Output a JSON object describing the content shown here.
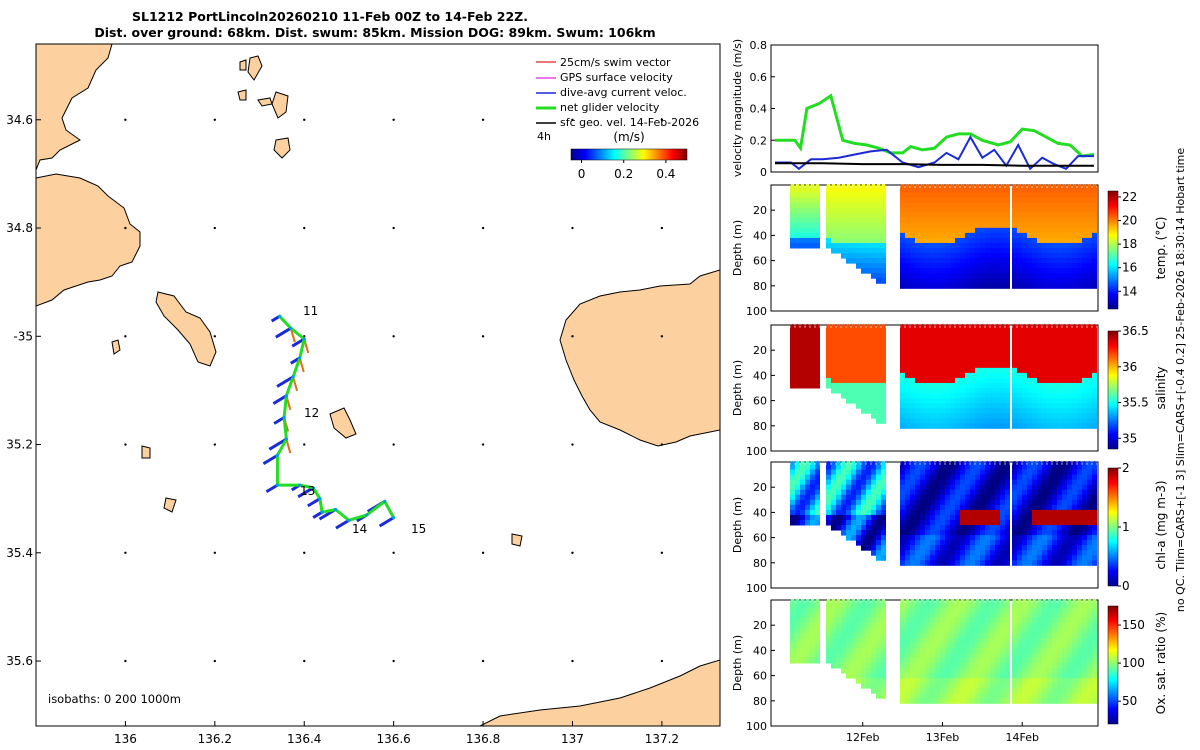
{
  "colors": {
    "land": "#fcd09f",
    "grid": "#000000",
    "swim": "#e02020",
    "gps": "#e020e0",
    "current": "#1a2ad8",
    "net": "#22dd22",
    "sfc": "#000000"
  },
  "chart_data": [
    {
      "type": "map",
      "title_line1": "SL1212 PortLincoln20260210 11-Feb 00Z to 14-Feb 22Z.",
      "title_line2": "Dist. over ground: 68km. Dist. swum: 85km. Mission DOG: 89km. Swum: 106km",
      "xlim": [
        135.8,
        137.33
      ],
      "ylim": [
        -35.72,
        -34.46
      ],
      "x_ticks": [
        136,
        136.2,
        136.4,
        136.6,
        136.8,
        137,
        137.2
      ],
      "x_tick_labels": [
        "136",
        "136.2",
        "136.4",
        "136.6",
        "136.8",
        "137",
        "137.2"
      ],
      "y_ticks": [
        -34.6,
        -34.8,
        -35,
        -35.2,
        -35.4,
        -35.6
      ],
      "y_tick_labels": [
        "34.6",
        "34.8",
        "-35",
        "35.2",
        "35.4",
        "35.6"
      ],
      "legend": [
        {
          "label": "25cm/s swim vector",
          "color": "#e02020"
        },
        {
          "label": "GPS surface velocity",
          "color": "#e020e0"
        },
        {
          "label": "dive-avg current veloc.",
          "color": "#1a2ad8"
        },
        {
          "label": "net glider velocity",
          "color": "#22dd22"
        },
        {
          "label": "sfc geo. vel. 14-Feb-2026",
          "color": "#000000"
        }
      ],
      "legend_extra": "4h",
      "colorbar_label": "(m/s)",
      "colorbar_ticks": [
        0,
        0.2,
        0.4
      ],
      "colorbar_range": [
        -0.05,
        0.5
      ],
      "isobaths_label": "isobaths: 0   200  1000m",
      "day_labels": [
        {
          "label": "11",
          "lon": 136.37,
          "lat": -34.97
        },
        {
          "label": "12",
          "lon": 136.37,
          "lat": -35.15
        },
        {
          "label": "13",
          "lon": 136.39,
          "lat": -35.28
        },
        {
          "label": "14",
          "lon": 136.5,
          "lat": -35.34
        },
        {
          "label": "15",
          "lon": 136.62,
          "lat": -35.34
        }
      ],
      "track": [
        [
          136.345,
          -34.963
        ],
        [
          136.37,
          -34.985
        ],
        [
          136.4,
          -35.005
        ],
        [
          136.39,
          -35.04
        ],
        [
          136.375,
          -35.075
        ],
        [
          136.36,
          -35.11
        ],
        [
          136.355,
          -35.15
        ],
        [
          136.36,
          -35.19
        ],
        [
          136.34,
          -35.22
        ],
        [
          136.34,
          -35.275
        ],
        [
          136.39,
          -35.275
        ],
        [
          136.42,
          -35.28
        ],
        [
          136.435,
          -35.3
        ],
        [
          136.44,
          -35.325
        ],
        [
          136.47,
          -35.32
        ],
        [
          136.5,
          -35.34
        ],
        [
          136.54,
          -35.33
        ],
        [
          136.58,
          -35.305
        ],
        [
          136.6,
          -35.335
        ]
      ]
    },
    {
      "type": "line",
      "ylabel": "velocity magnitude (m/s)",
      "ylim": [
        0,
        0.8
      ],
      "y_ticks": [
        0,
        0.2,
        0.4,
        0.6,
        0.8
      ],
      "x_range_days": [
        10.85,
        14.95
      ],
      "series": [
        {
          "name": "net glider velocity",
          "color": "#22dd22",
          "x": [
            10.9,
            11.15,
            11.22,
            11.3,
            11.45,
            11.6,
            11.75,
            11.9,
            12.05,
            12.2,
            12.35,
            12.5,
            12.6,
            12.75,
            12.9,
            13.05,
            13.2,
            13.35,
            13.5,
            13.7,
            13.85,
            14.0,
            14.15,
            14.3,
            14.45,
            14.6,
            14.75,
            14.9
          ],
          "y": [
            0.2,
            0.2,
            0.15,
            0.4,
            0.43,
            0.48,
            0.2,
            0.18,
            0.17,
            0.15,
            0.12,
            0.12,
            0.16,
            0.14,
            0.15,
            0.22,
            0.24,
            0.24,
            0.2,
            0.17,
            0.19,
            0.27,
            0.26,
            0.22,
            0.18,
            0.17,
            0.1,
            0.11
          ]
        },
        {
          "name": "dive-avg current veloc.",
          "color": "#1a2ad8",
          "x": [
            10.9,
            11.1,
            11.2,
            11.35,
            11.5,
            11.7,
            11.9,
            12.1,
            12.3,
            12.5,
            12.7,
            12.9,
            13.05,
            13.2,
            13.35,
            13.5,
            13.65,
            13.8,
            13.95,
            14.1,
            14.25,
            14.4,
            14.55,
            14.7,
            14.9
          ],
          "y": [
            0.06,
            0.06,
            0.02,
            0.08,
            0.08,
            0.09,
            0.11,
            0.13,
            0.14,
            0.06,
            0.03,
            0.06,
            0.12,
            0.08,
            0.22,
            0.09,
            0.14,
            0.04,
            0.17,
            0.02,
            0.09,
            0.05,
            0.02,
            0.1,
            0.1
          ]
        },
        {
          "name": "sfc geo. vel.",
          "color": "#000000",
          "x": [
            10.9,
            11.5,
            12.0,
            12.5,
            13.0,
            13.5,
            14.0,
            14.5,
            14.9
          ],
          "y": [
            0.055,
            0.055,
            0.05,
            0.05,
            0.045,
            0.045,
            0.04,
            0.04,
            0.04
          ]
        }
      ]
    },
    {
      "type": "heatmap",
      "ylabel": "Depth (m)",
      "colorbar_label": "temp. (°C)",
      "colorbar_ticks": [
        14,
        16,
        18,
        20,
        22
      ],
      "colorbar_range": [
        12.5,
        22.5
      ],
      "ylim": [
        0,
        100
      ],
      "y_ticks": [
        20,
        40,
        60,
        80,
        100
      ]
    },
    {
      "type": "heatmap",
      "ylabel": "Depth (m)",
      "colorbar_label": "salinity",
      "colorbar_ticks": [
        35,
        35.5,
        36,
        36.5
      ],
      "colorbar_range": [
        34.85,
        36.5
      ],
      "ylim": [
        0,
        100
      ],
      "y_ticks": [
        20,
        40,
        60,
        80,
        100
      ]
    },
    {
      "type": "heatmap",
      "ylabel": "Depth (m)",
      "colorbar_label": "chl-a (mg m-3)",
      "colorbar_ticks": [
        0,
        1,
        2
      ],
      "colorbar_range": [
        0,
        2
      ],
      "ylim": [
        0,
        100
      ],
      "y_ticks": [
        20,
        40,
        60,
        80,
        100
      ]
    },
    {
      "type": "heatmap",
      "ylabel": "Depth (m)",
      "colorbar_label": "Ox. sat. ratio (%)",
      "colorbar_ticks": [
        50,
        100,
        150
      ],
      "colorbar_range": [
        20,
        175
      ],
      "ylim": [
        0,
        100
      ],
      "y_ticks": [
        20,
        40,
        60,
        80,
        100
      ]
    }
  ],
  "time_axis": {
    "tick_labels": [
      "12Feb",
      "13Feb",
      "14Feb"
    ],
    "tick_days": [
      12,
      13,
      14
    ]
  },
  "side_note": "no QC. Tlim=CARS+[-1 3] Slim=CARS+[-0.4 0.2] 25-Feb-2026 18:30:14 Hobart time"
}
